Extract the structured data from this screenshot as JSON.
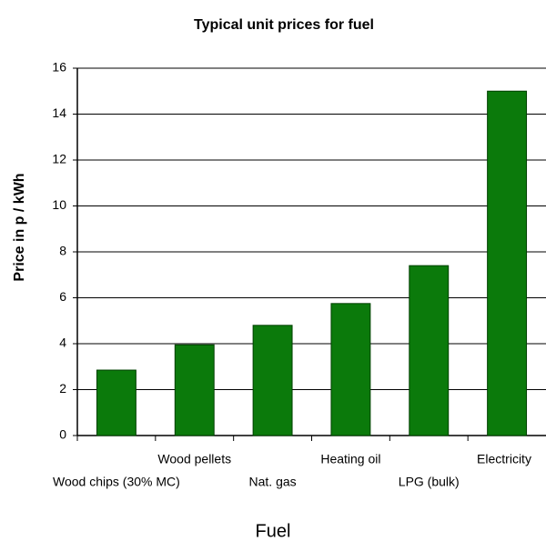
{
  "chart_data": {
    "type": "bar",
    "title": "Typical unit prices for fuel",
    "y_label": "Price in p / kWh",
    "x_label": "Fuel",
    "categories": [
      "Wood chips (30% MC)",
      "Wood pellets",
      "Nat. gas",
      "Heating oil",
      "LPG (bulk)",
      "Electricity"
    ],
    "values": [
      2.85,
      3.95,
      4.8,
      5.75,
      7.4,
      15.0
    ],
    "color": "#0b7a0b",
    "ylim": [
      0,
      16
    ],
    "yticks": [
      0,
      2,
      4,
      6,
      8,
      10,
      12,
      14,
      16
    ],
    "grid": true
  }
}
